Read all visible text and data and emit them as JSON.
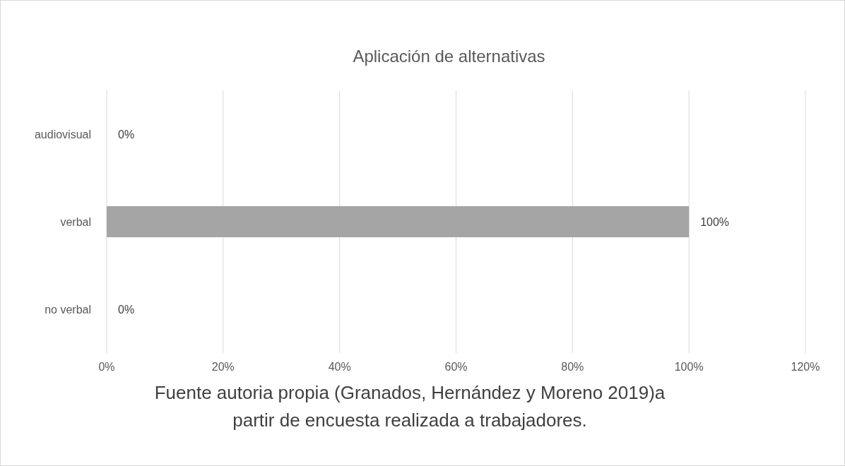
{
  "chart_data": {
    "type": "bar",
    "orientation": "horizontal",
    "title": "Aplicación de alternativas",
    "categories": [
      "audiovisual",
      "verbal",
      "no verbal"
    ],
    "values": [
      0,
      100,
      0
    ],
    "color": "#a5a5a5",
    "value_labels": [
      "0%",
      "100%",
      "0%"
    ],
    "xlim": [
      0,
      120
    ],
    "xticks": [
      {
        "value": 0,
        "label": "0%"
      },
      {
        "value": 20,
        "label": "20%"
      },
      {
        "value": 40,
        "label": "40%"
      },
      {
        "value": 60,
        "label": "60%"
      },
      {
        "value": 80,
        "label": "80%"
      },
      {
        "value": 100,
        "label": "100%"
      },
      {
        "value": 120,
        "label": "120%"
      }
    ],
    "grid": "x",
    "annotations": [
      "Fuente autoria propia (Granados, Hernández y Moreno 2019)a partir de encuesta realizada a trabajadores."
    ]
  }
}
